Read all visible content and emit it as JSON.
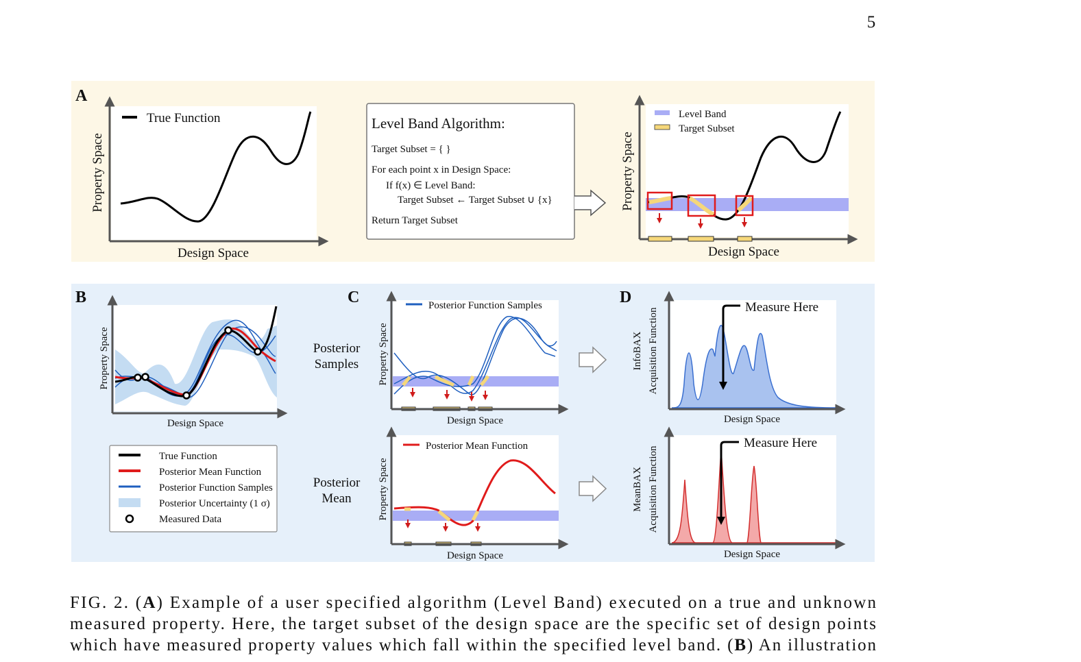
{
  "page_number": "5",
  "figure": {
    "panel_a": {
      "label": "A",
      "left_plot": {
        "legend": "True Function",
        "y_label": "Property Space",
        "x_label": "Design Space"
      },
      "algorithm": {
        "title": "Level Band Algorithm:",
        "lines": [
          "Target Subset = { }",
          "For each point x in Design Space:",
          "If f(x) ∈ Level Band:",
          "Target Subset ← Target Subset ∪ {x}",
          "Return Target Subset"
        ]
      },
      "right_plot": {
        "legend": [
          "Level Band",
          "Target Subset"
        ],
        "y_label": "Property Space",
        "x_label": "Design Space"
      }
    },
    "panel_b": {
      "label": "B",
      "y_label": "Property Space",
      "x_label": "Design Space",
      "legend": [
        "True Function",
        "Posterior Mean Function",
        "Posterior Function Samples",
        "Posterior Uncertainty (1 σ)",
        "Measured Data"
      ]
    },
    "panel_c": {
      "label": "C",
      "rows": [
        {
          "label": [
            "Posterior",
            "Samples"
          ],
          "legend": "Posterior Function Samples",
          "y_label": "Property Space",
          "x_label": "Design Space"
        },
        {
          "label": [
            "Posterior",
            "Mean"
          ],
          "legend": "Posterior Mean Function",
          "y_label": "Property Space",
          "x_label": "Design Space"
        }
      ]
    },
    "panel_d": {
      "label": "D",
      "rows": [
        {
          "y_label": [
            "InfoBAX",
            "Acquisition Function"
          ],
          "annotation": "Measure Here",
          "x_label": "Design Space"
        },
        {
          "y_label": [
            "MeanBAX",
            "Acquisition Function"
          ],
          "annotation": "Measure Here",
          "x_label": "Design Space"
        }
      ]
    }
  },
  "caption": {
    "lines": [
      [
        {
          "text": "FIG. 2. (",
          "bold": false
        },
        {
          "text": "A",
          "bold": true
        },
        {
          "text": ") Example of a user specified algorithm (Level Band) executed on a true and unknown",
          "bold": false
        }
      ],
      [
        {
          "text": "measured property. Here, the target subset of the design space are the specific set of design points",
          "bold": false
        }
      ],
      [
        {
          "text": "which have measured property values which fall within the specified level band. (",
          "bold": false
        },
        {
          "text": "B",
          "bold": true
        },
        {
          "text": ") An illustration",
          "bold": false
        }
      ]
    ]
  }
}
